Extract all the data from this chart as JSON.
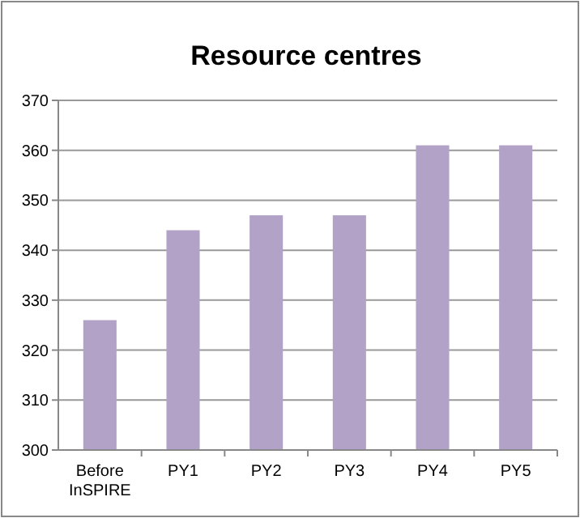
{
  "chart_data": {
    "type": "bar",
    "title": "Resource centres",
    "categories": [
      "Before InSPIRE",
      "PY1",
      "PY2",
      "PY3",
      "PY4",
      "PY5"
    ],
    "values": [
      326,
      344,
      347,
      347,
      361,
      361
    ],
    "color": "#b2a2c7",
    "ylim": [
      300,
      370
    ],
    "yticks": [
      300,
      310,
      320,
      330,
      340,
      350,
      360,
      370
    ],
    "grid": "y"
  }
}
